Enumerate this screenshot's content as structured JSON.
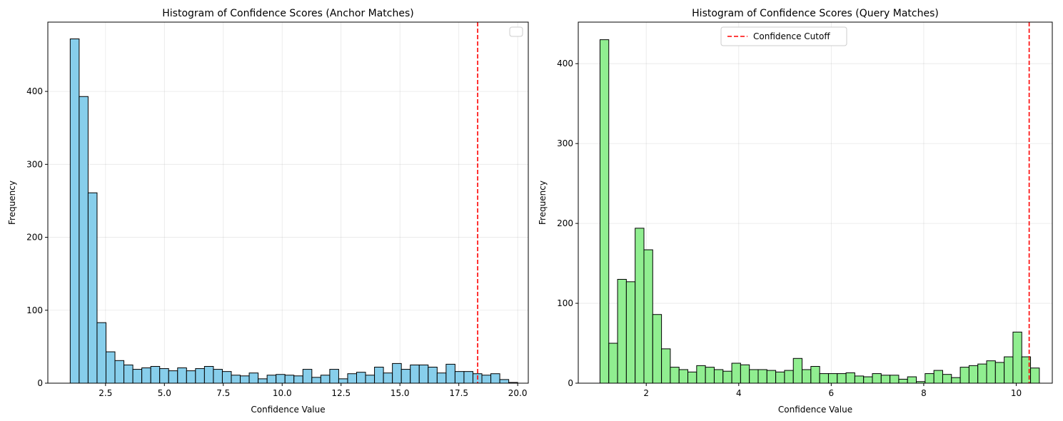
{
  "chart_data": [
    {
      "type": "bar",
      "title": "Histogram of Confidence Scores (Anchor Matches)",
      "xlabel": "Confidence Value",
      "ylabel": "Frequency",
      "xlim": [
        0.05,
        20.45
      ],
      "ylim": [
        0,
        495
      ],
      "xticks": [
        2.5,
        5.0,
        7.5,
        10.0,
        12.5,
        15.0,
        17.5,
        20.0
      ],
      "xtick_labels": [
        "2.5",
        "5.0",
        "7.5",
        "10.0",
        "12.5",
        "15.0",
        "17.5",
        "20.0"
      ],
      "yticks": [
        0,
        100,
        200,
        300,
        400
      ],
      "ytick_labels": [
        "0",
        "100",
        "200",
        "300",
        "400"
      ],
      "grid": true,
      "bar_color": "#87ceeb",
      "edge_color": "#000000",
      "bin_start": 1.0,
      "bin_width": 0.38,
      "values": [
        472,
        393,
        261,
        83,
        43,
        31,
        25,
        19,
        21,
        23,
        20,
        17,
        21,
        17,
        20,
        23,
        19,
        16,
        11,
        10,
        14,
        6,
        11,
        12,
        11,
        10,
        19,
        8,
        11,
        19,
        6,
        13,
        15,
        11,
        22,
        14,
        27,
        19,
        25,
        25,
        22,
        14,
        26,
        16,
        16,
        13,
        11,
        13,
        5,
        1
      ],
      "cutoff": 18.3,
      "cutoff_color": "#ff0000",
      "legend": {
        "location": "upper right",
        "entries": []
      }
    },
    {
      "type": "bar",
      "title": "Histogram of Confidence Scores (Query Matches)",
      "xlabel": "Confidence Value",
      "ylabel": "Frequency",
      "xlim": [
        0.53,
        10.78
      ],
      "ylim": [
        0,
        452
      ],
      "xticks": [
        2,
        4,
        6,
        8,
        10
      ],
      "xtick_labels": [
        "2",
        "4",
        "6",
        "8",
        "10"
      ],
      "yticks": [
        0,
        100,
        200,
        300,
        400
      ],
      "ytick_labels": [
        "0",
        "100",
        "200",
        "300",
        "400"
      ],
      "grid": true,
      "bar_color": "#90ee90",
      "edge_color": "#000000",
      "bin_start": 1.0,
      "bin_width": 0.19,
      "values": [
        430,
        50,
        130,
        127,
        194,
        167,
        86,
        43,
        20,
        17,
        14,
        22,
        20,
        17,
        15,
        25,
        23,
        17,
        17,
        16,
        14,
        16,
        31,
        17,
        21,
        12,
        12,
        12,
        13,
        9,
        8,
        12,
        10,
        10,
        5,
        8,
        2,
        12,
        16,
        11,
        7,
        20,
        22,
        24,
        28,
        26,
        33,
        64,
        33,
        19
      ],
      "cutoff": 10.28,
      "cutoff_color": "#ff0000",
      "legend": {
        "location": "upper center",
        "entries": [
          {
            "label": "Confidence Cutoff"
          }
        ]
      }
    }
  ]
}
